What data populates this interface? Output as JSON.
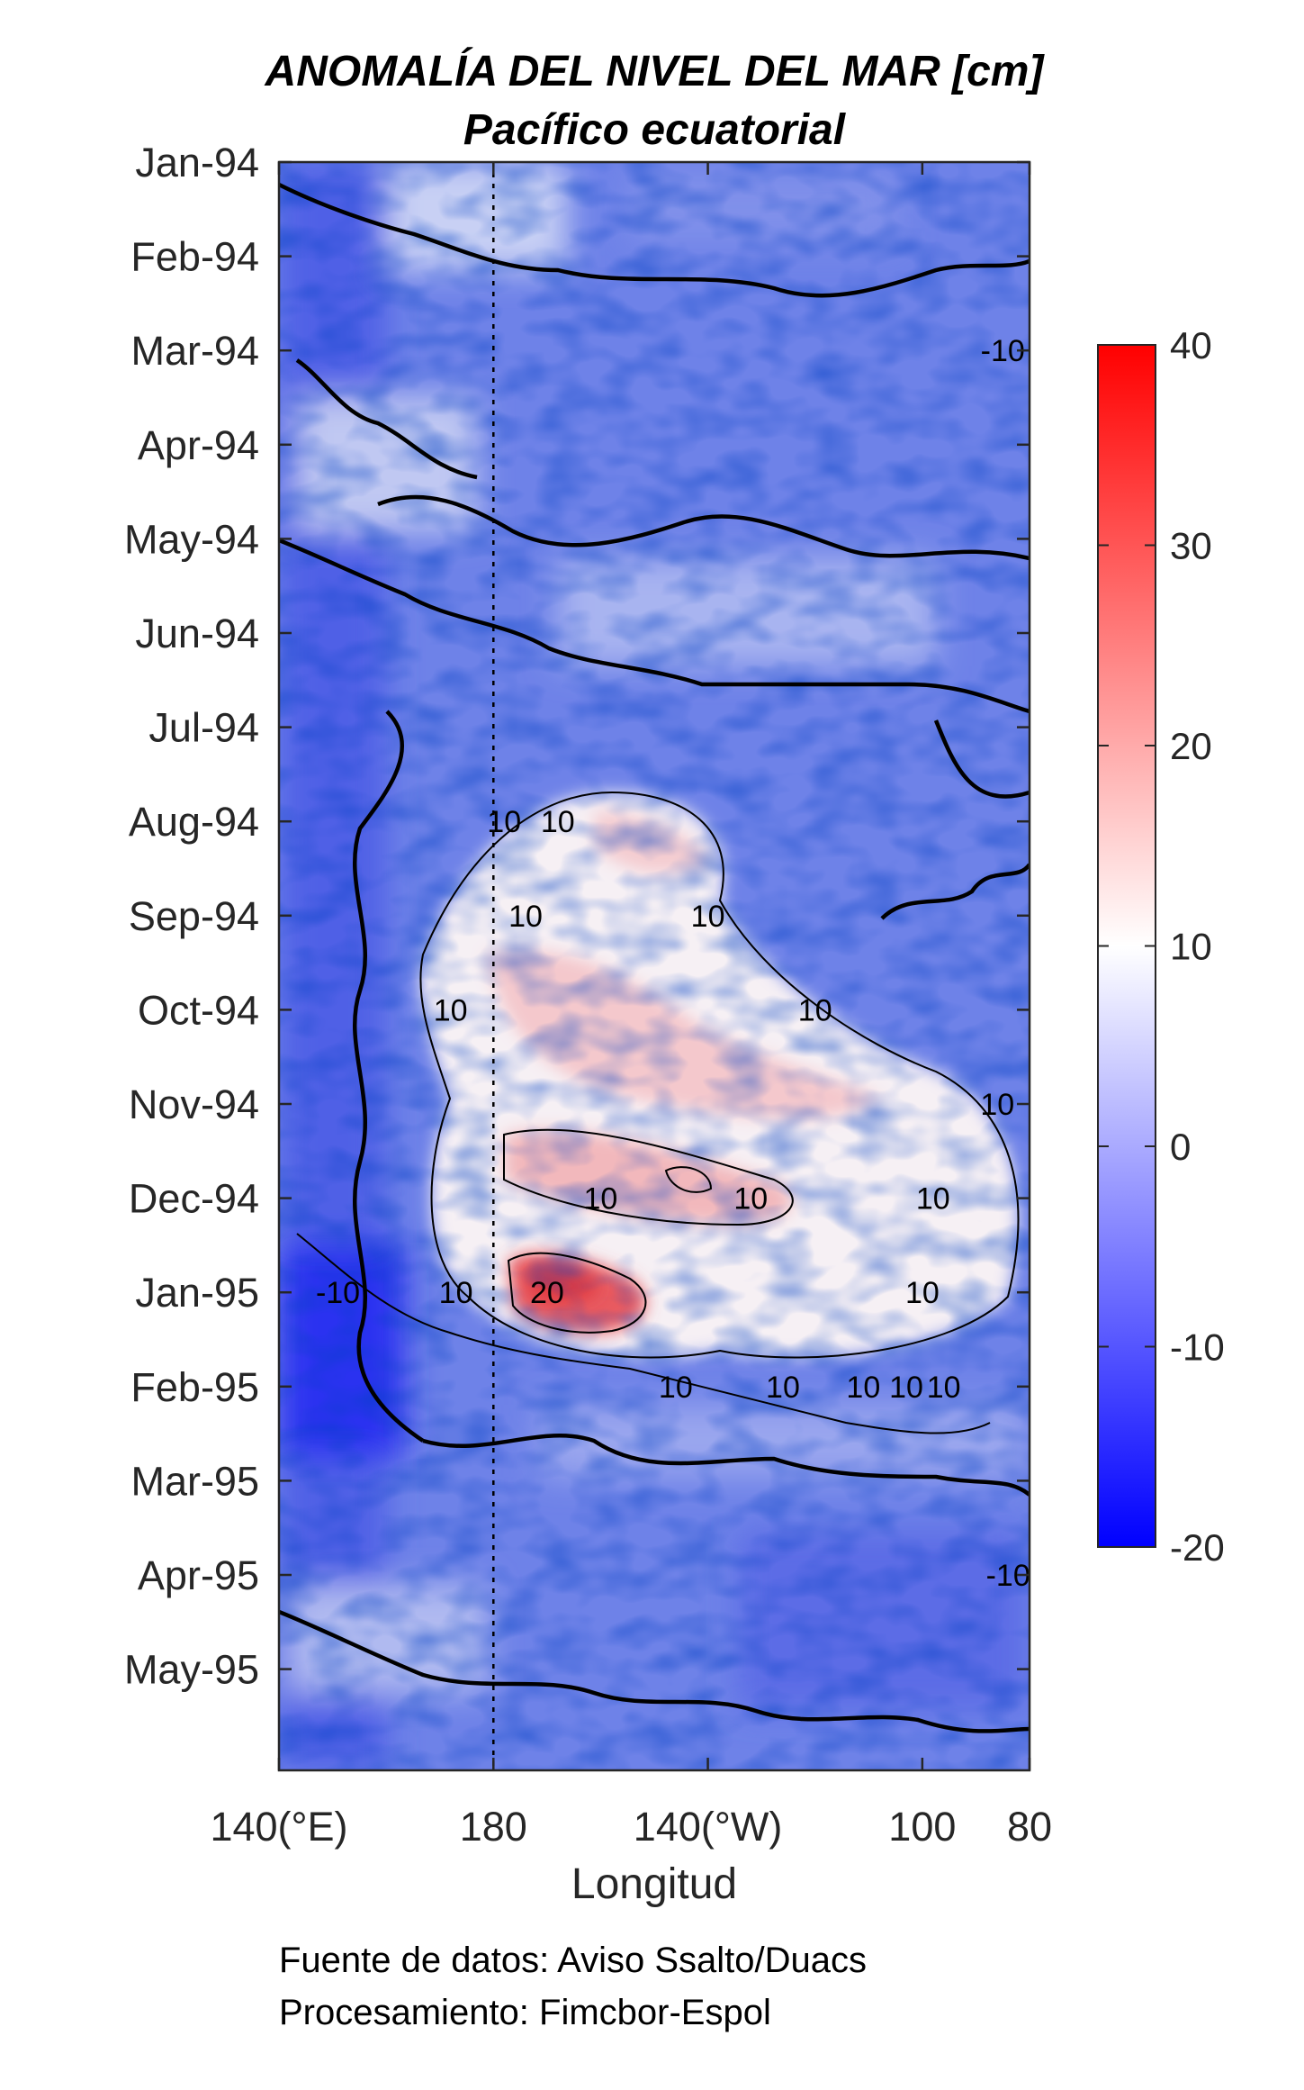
{
  "chart_data": {
    "type": "heatmap",
    "title": "ANOMALÍA DEL NIVEL DEL MAR [cm]",
    "subtitle": "Pacífico ecuatorial",
    "xlabel": "Longitud",
    "x_ticks": [
      "140(°E)",
      "180",
      "140(°W)",
      "100",
      "80"
    ],
    "x_tick_values": [
      140,
      180,
      220,
      260,
      280
    ],
    "xlim": [
      140,
      280
    ],
    "y_ticks": [
      "Jan-94",
      "Feb-94",
      "Mar-94",
      "Apr-94",
      "May-94",
      "Jun-94",
      "Jul-94",
      "Aug-94",
      "Sep-94",
      "Oct-94",
      "Nov-94",
      "Dec-94",
      "Jan-95",
      "Feb-95",
      "Mar-95",
      "Apr-95",
      "May-95"
    ],
    "y_reversed": true,
    "reference_line": {
      "x": 180,
      "style": "dotted"
    },
    "colorbar": {
      "ticks": [
        40,
        30,
        20,
        10,
        0,
        -10,
        -20
      ],
      "min": -20,
      "max": 40,
      "colors": [
        "#0000ff",
        "#ffffff",
        "#ff0000"
      ]
    },
    "contour_levels": [
      -10,
      0,
      10,
      20
    ],
    "contour_labels": [
      {
        "text": "-10",
        "lon": 275,
        "time": "Mar-94"
      },
      {
        "text": "10",
        "lon": 192,
        "time": "Aug-94"
      },
      {
        "text": "10",
        "lon": 182,
        "time": "Aug-94"
      },
      {
        "text": "10",
        "lon": 220,
        "time": "Sep-94"
      },
      {
        "text": "10",
        "lon": 186,
        "time": "Sep-94"
      },
      {
        "text": "10",
        "lon": 172,
        "time": "Oct-94"
      },
      {
        "text": "10",
        "lon": 240,
        "time": "Oct-94"
      },
      {
        "text": "10",
        "lon": 274,
        "time": "Nov-94"
      },
      {
        "text": "10",
        "lon": 262,
        "time": "Dec-94"
      },
      {
        "text": "10",
        "lon": 200,
        "time": "Dec-94"
      },
      {
        "text": "10",
        "lon": 228,
        "time": "Dec-94"
      },
      {
        "text": "10",
        "lon": 260,
        "time": "Jan-95"
      },
      {
        "text": "10",
        "lon": 173,
        "time": "Jan-95"
      },
      {
        "text": "20",
        "lon": 190,
        "time": "Jan-95"
      },
      {
        "text": "-10",
        "lon": 151,
        "time": "Jan-95"
      },
      {
        "text": "10",
        "lon": 214,
        "time": "Feb-95"
      },
      {
        "text": "10",
        "lon": 234,
        "time": "Feb-95"
      },
      {
        "text": "10",
        "lon": 249,
        "time": "Feb-95"
      },
      {
        "text": "10",
        "lon": 257,
        "time": "Feb-95"
      },
      {
        "text": "10",
        "lon": 264,
        "time": "Feb-95"
      },
      {
        "text": "-10",
        "lon": 276,
        "time": "Apr-95"
      }
    ]
  },
  "footer": {
    "source": "Fuente de datos: Aviso Ssalto/Duacs",
    "processing": "Procesamiento: Fimcbor-Espol"
  }
}
